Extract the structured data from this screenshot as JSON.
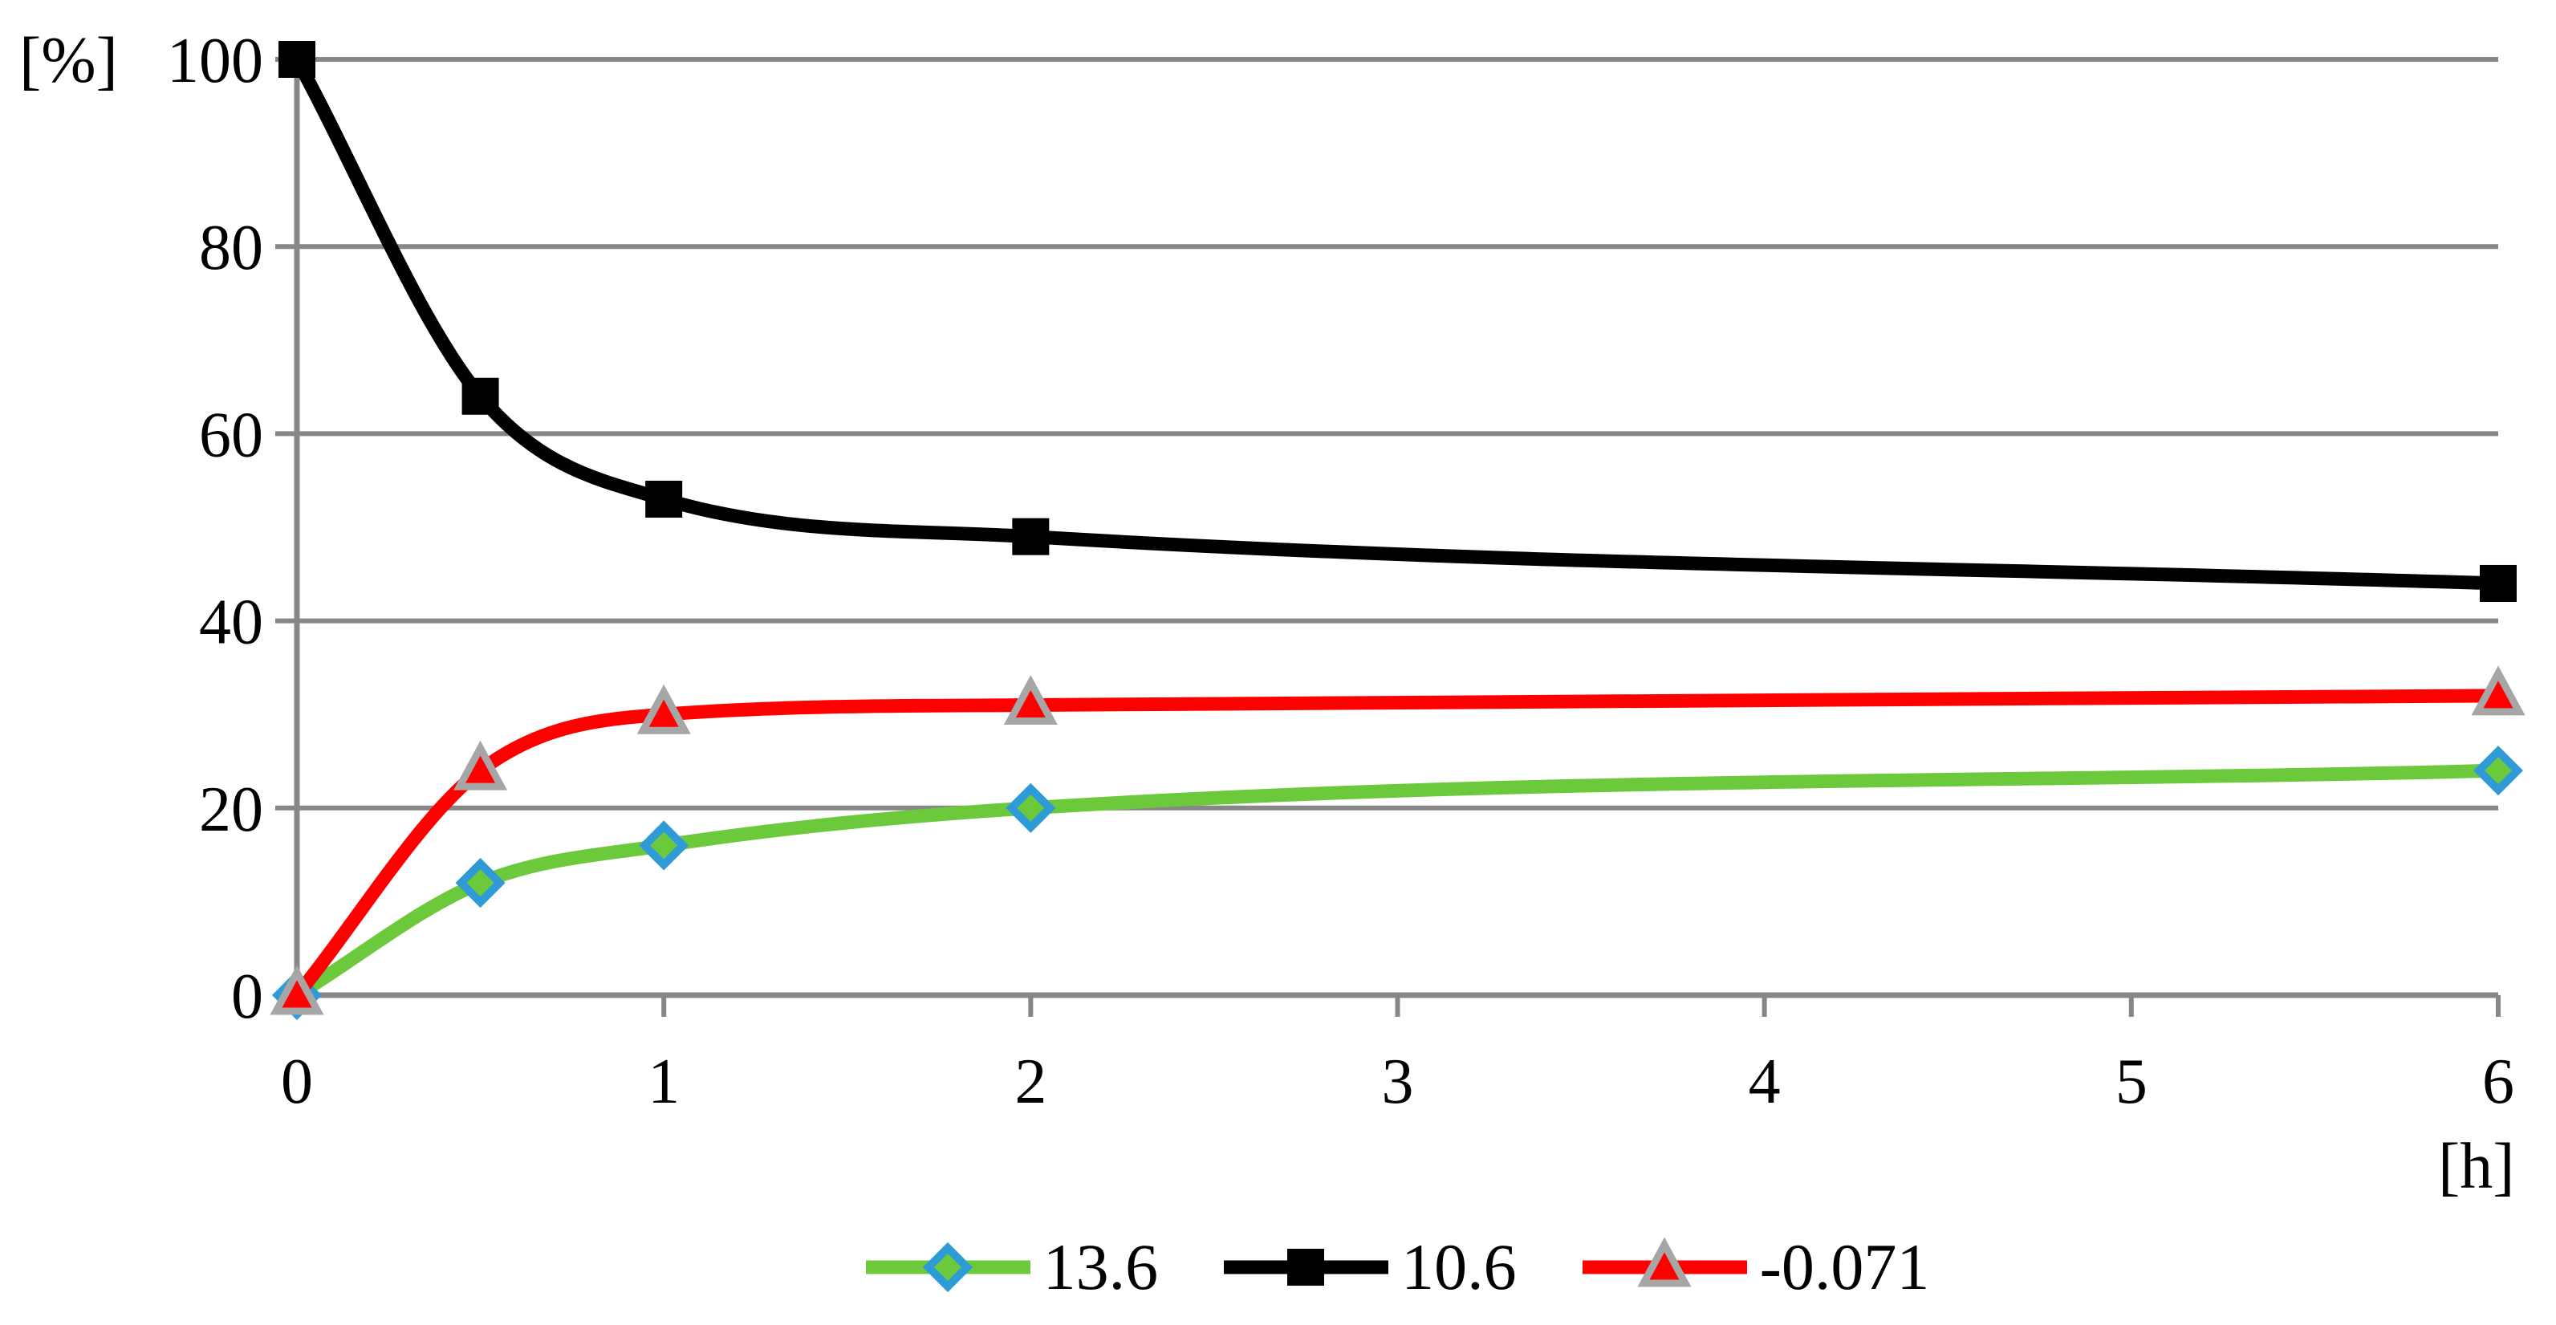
{
  "chart_data": {
    "type": "line",
    "title": "",
    "xlabel": "[h]",
    "ylabel": "[%]",
    "x": [
      0,
      0.5,
      1,
      2,
      6
    ],
    "series": [
      {
        "name": "13.6",
        "marker": "diamond",
        "line_color": "#6CC93C",
        "marker_fill": "#6CC93C",
        "marker_edge": "#2E9BD6",
        "values": [
          0,
          12,
          16,
          20,
          24
        ]
      },
      {
        "name": "10.6",
        "marker": "square",
        "line_color": "#000000",
        "marker_fill": "#000000",
        "marker_edge": "#000000",
        "values": [
          100,
          64,
          53,
          49,
          44
        ]
      },
      {
        "name": "-0.071",
        "marker": "triangle",
        "line_color": "#FF0000",
        "marker_fill": "#FF0000",
        "marker_edge": "#A6A6A6",
        "values": [
          0,
          24,
          30,
          31,
          32
        ]
      }
    ],
    "xlim": [
      0,
      6
    ],
    "ylim": [
      0,
      100
    ],
    "xticks": [
      0,
      1,
      2,
      3,
      4,
      5,
      6
    ],
    "yticks": [
      0,
      20,
      40,
      60,
      80,
      100
    ],
    "grid": "horizontal",
    "grid_color": "#878787",
    "axis_color": "#878787",
    "background": "#FFFFFF",
    "legend_position": "bottom-center",
    "curve_style": "smooth"
  }
}
